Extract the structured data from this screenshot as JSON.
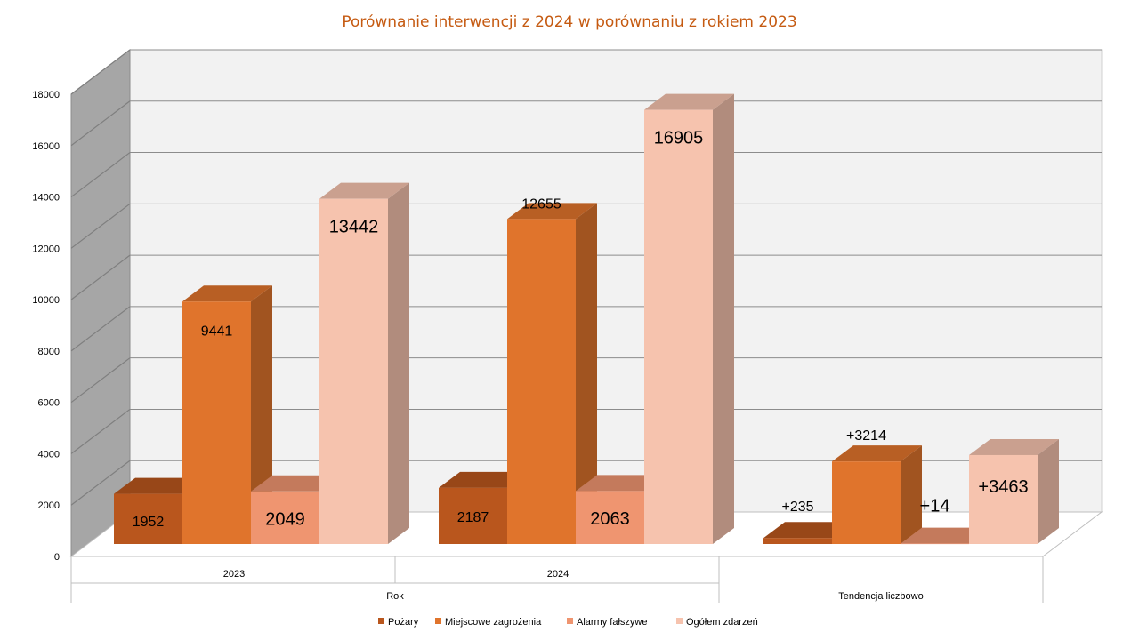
{
  "chart_data": {
    "type": "bar",
    "title": "Porównanie interwencji z 2024 w porównaniu z rokiem 2023",
    "xlabel": "",
    "ylabel": "",
    "ylim": [
      0,
      18000
    ],
    "yticks": [
      "0",
      "2000",
      "4000",
      "6000",
      "8000",
      "10000",
      "12000",
      "14000",
      "16000",
      "18000"
    ],
    "grid": true,
    "legend_position": "bottom",
    "groups": [
      {
        "label": "Rok",
        "categories": [
          "2023",
          "2024"
        ]
      },
      {
        "label": "Tendencja liczbowo",
        "categories": [
          ""
        ]
      }
    ],
    "categories": [
      "2023",
      "2024",
      ""
    ],
    "series": [
      {
        "name": "Pożary",
        "color": "#b9561d",
        "values": [
          1952,
          2187,
          235
        ],
        "labels": [
          "1952",
          "2187",
          "+235"
        ]
      },
      {
        "name": "Miejscowe zagrożenia",
        "color": "#e0742c",
        "values": [
          9441,
          12655,
          3214
        ],
        "labels": [
          "9441",
          "12655",
          "+3214"
        ]
      },
      {
        "name": "Alarmy fałszywe",
        "color": "#ef9570",
        "values": [
          2049,
          2063,
          14
        ],
        "labels": [
          "2049",
          "2063",
          "+14"
        ]
      },
      {
        "name": "Ogółem zdarzeń",
        "color": "#f6c3ae",
        "values": [
          13442,
          16905,
          3463
        ],
        "labels": [
          "13442",
          "16905",
          "+3463"
        ]
      }
    ]
  }
}
